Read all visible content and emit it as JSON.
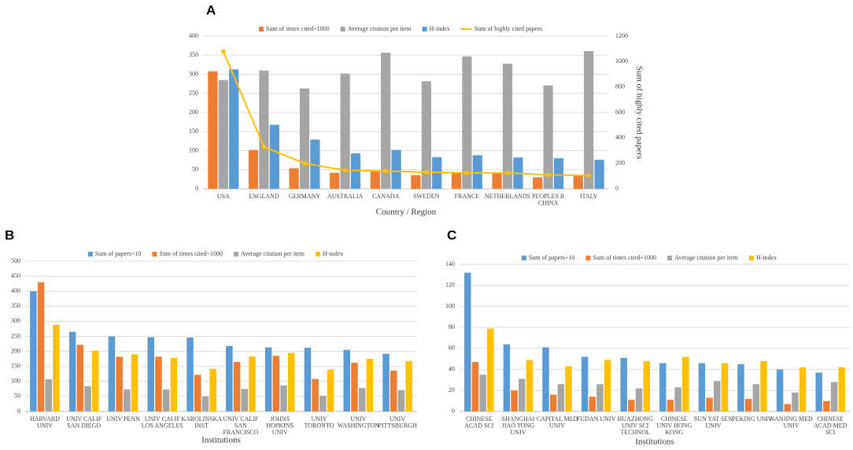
{
  "chart_data": [
    {
      "type": "bar",
      "title": "A",
      "categories": [
        "USA",
        "ENGLAND",
        "GERMANY",
        "AUSTRALIA",
        "CANADA",
        "SWEDEN",
        "FRANCE",
        "NETHERLANDS",
        "PEOPLES R CHINA",
        "ITALY"
      ],
      "series": [
        {
          "name": "Sum of times cited÷1000",
          "color": "#ED7D31",
          "values": [
            308,
            102,
            54,
            42,
            48,
            36,
            42,
            40,
            30,
            35
          ]
        },
        {
          "name": "Average citation per item",
          "color": "#A5A5A5",
          "values": [
            285,
            310,
            263,
            302,
            357,
            282,
            347,
            328,
            271,
            361
          ]
        },
        {
          "name": "H-index",
          "color": "#5B9BD5",
          "values": [
            313,
            168,
            129,
            93,
            102,
            83,
            88,
            82,
            80,
            76
          ]
        },
        {
          "name": "Sum of highly cited papers",
          "color": "#FFC000",
          "type": "line",
          "axis": "y2",
          "values": [
            1080,
            330,
            200,
            145,
            140,
            130,
            125,
            125,
            110,
            105
          ]
        }
      ],
      "ylim": [
        0,
        400
      ],
      "yticks": [
        0,
        50,
        100,
        150,
        200,
        250,
        300,
        350,
        400
      ],
      "y2lim": [
        0,
        1200
      ],
      "y2ticks": [
        0,
        200,
        400,
        600,
        800,
        1000,
        1200
      ],
      "x_label": "Country / Region",
      "y2_label": "Sum of highly cited papers",
      "grid": true
    },
    {
      "type": "bar",
      "title": "B",
      "categories": [
        "HARVARD UNIV",
        "UNIV CALIF SAN DIEGO",
        "UNIV PENN",
        "UNIV CALIF LOS ANGELES",
        "KAROLINSKA INST",
        "UNIV CALIF SAN FRANCISCO",
        "JOHNS HOPKINS UNIV",
        "UNIV TORONTO",
        "UNIV WASHINGTON",
        "UNIV PITTSBURGH"
      ],
      "series": [
        {
          "name": "Sum of papers÷10",
          "color": "#5B9BD5",
          "values": [
            400,
            265,
            250,
            247,
            246,
            218,
            213,
            212,
            205,
            192
          ]
        },
        {
          "name": "Sum of times cited÷1000",
          "color": "#ED7D31",
          "values": [
            430,
            222,
            182,
            182,
            122,
            165,
            185,
            108,
            162,
            136
          ]
        },
        {
          "name": "Average citation per item",
          "color": "#A5A5A5",
          "values": [
            107,
            84,
            73,
            73,
            50,
            75,
            87,
            52,
            78,
            71
          ]
        },
        {
          "name": "H-index",
          "color": "#FFC000",
          "values": [
            288,
            202,
            190,
            178,
            142,
            183,
            195,
            140,
            175,
            168
          ]
        }
      ],
      "ylim": [
        0,
        500
      ],
      "yticks": [
        0,
        50,
        100,
        150,
        200,
        250,
        300,
        350,
        400,
        450,
        500
      ],
      "x_label": "Institutions",
      "grid": true
    },
    {
      "type": "bar",
      "title": "C",
      "categories": [
        "CHINESE ACAD SCI",
        "SHANGHAI JIAO TONG UNIV",
        "CAPITAL MED UNIV",
        "FUDAN UNIV",
        "HUAZHONG UNIV SCI TECHNOL",
        "CHINESE UNIV HONG KONG",
        "SUN YAT SEN UNIV",
        "PEKING UNIV",
        "NANJING MED UNIV",
        "CHINESE ACAD MED SCI"
      ],
      "series": [
        {
          "name": "Sum of papers÷10",
          "color": "#5B9BD5",
          "values": [
            132,
            64,
            61,
            52,
            51,
            46,
            46,
            45,
            40,
            37
          ]
        },
        {
          "name": "Sum of times cited÷1000",
          "color": "#ED7D31",
          "values": [
            47,
            20,
            16,
            14,
            11,
            11,
            13,
            12,
            7,
            10
          ]
        },
        {
          "name": "Average citation per item",
          "color": "#A5A5A5",
          "values": [
            35,
            31,
            26,
            26,
            22,
            23,
            29,
            26,
            18,
            28
          ]
        },
        {
          "name": "H-index",
          "color": "#FFC000",
          "values": [
            79,
            49,
            43,
            49,
            48,
            52,
            46,
            48,
            42,
            42
          ]
        }
      ],
      "ylim": [
        0,
        140
      ],
      "yticks": [
        0,
        20,
        40,
        60,
        80,
        100,
        120,
        140
      ],
      "x_label": "Institutions",
      "grid": true
    }
  ]
}
